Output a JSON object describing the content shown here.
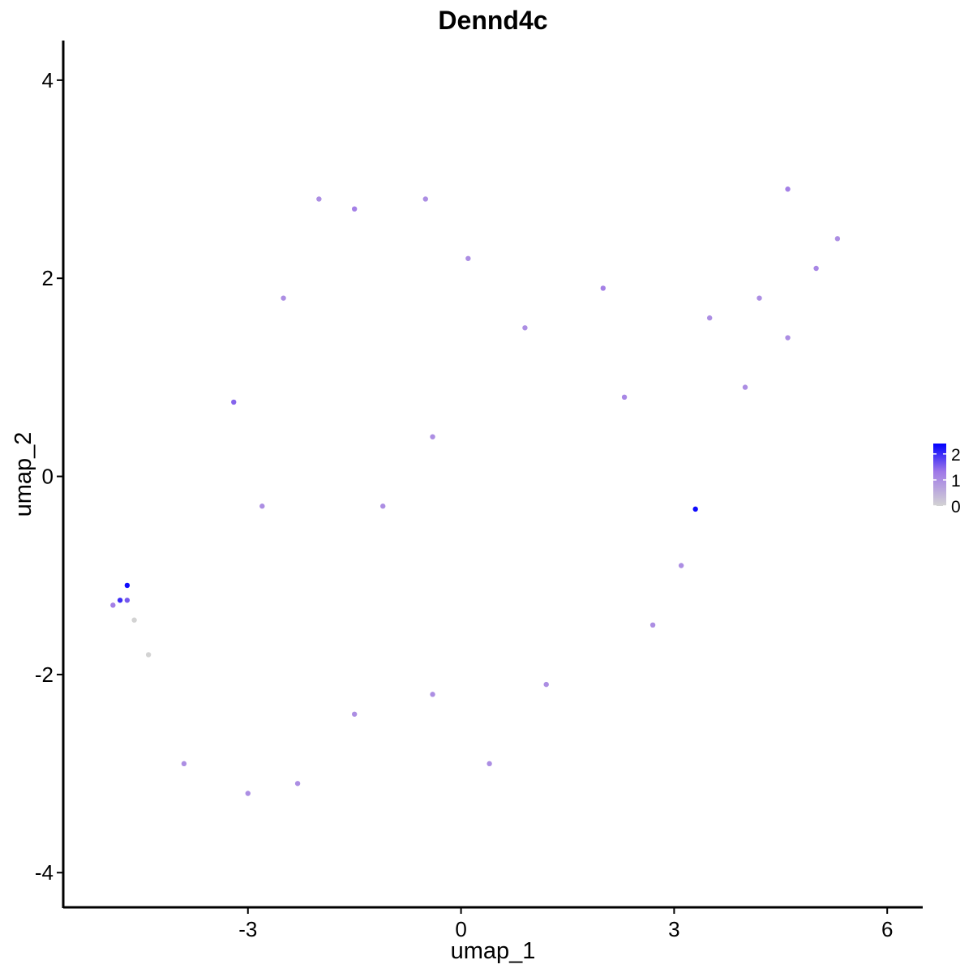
{
  "chart_data": {
    "type": "scatter",
    "title": "Dennd4c",
    "xlabel": "umap_1",
    "ylabel": "umap_2",
    "xlim": [
      -5.6,
      6.5
    ],
    "ylim": [
      -4.35,
      4.4
    ],
    "x_ticks": [
      -3,
      0,
      3,
      6
    ],
    "y_ticks": [
      -4,
      -2,
      0,
      2,
      4
    ],
    "x_tick_labels": [
      "-3",
      "0",
      "3",
      "6"
    ],
    "y_tick_labels": [
      "-4",
      "-2",
      "0",
      "2",
      "4"
    ],
    "grid": false,
    "legend": {
      "position": "right",
      "type": "colorbar",
      "range": [
        0,
        2.4
      ],
      "ticks": [
        0,
        1,
        2
      ],
      "tick_labels": [
        "0",
        "1",
        "2"
      ],
      "low_color": "#d3d3d3",
      "high_color": "#0000ff"
    },
    "points": [
      [
        -4.8,
        -1.25,
        2.0
      ],
      [
        -4.7,
        -1.1,
        2.3
      ],
      [
        -4.7,
        -1.25,
        1.6
      ],
      [
        -4.9,
        -1.3,
        1.2
      ],
      [
        -4.6,
        -1.45,
        0.0
      ],
      [
        -4.4,
        -1.8,
        0.0
      ],
      [
        3.3,
        -0.33,
        2.3
      ],
      [
        -3.2,
        0.75,
        1.5
      ],
      [
        -2.5,
        1.8,
        1.0
      ],
      [
        -2.0,
        2.8,
        1.0
      ],
      [
        -1.5,
        2.7,
        1.2
      ],
      [
        -0.5,
        2.8,
        1.0
      ],
      [
        0.1,
        2.2,
        1.0
      ],
      [
        0.9,
        1.5,
        1.0
      ],
      [
        2.0,
        1.9,
        1.2
      ],
      [
        2.3,
        0.8,
        1.1
      ],
      [
        3.5,
        1.6,
        1.0
      ],
      [
        4.2,
        1.8,
        1.0
      ],
      [
        4.6,
        2.9,
        1.2
      ],
      [
        5.0,
        2.1,
        1.1
      ],
      [
        5.3,
        2.4,
        1.0
      ],
      [
        4.6,
        1.4,
        1.0
      ],
      [
        4.0,
        0.9,
        1.0
      ],
      [
        3.1,
        -0.9,
        1.0
      ],
      [
        2.7,
        -1.5,
        1.0
      ],
      [
        1.2,
        -2.1,
        1.0
      ],
      [
        0.4,
        -2.9,
        1.0
      ],
      [
        -0.4,
        -2.2,
        1.0
      ],
      [
        -1.5,
        -2.4,
        1.0
      ],
      [
        -2.3,
        -3.1,
        1.0
      ],
      [
        -3.0,
        -3.2,
        1.0
      ],
      [
        -3.9,
        -2.9,
        1.0
      ],
      [
        -2.8,
        -0.3,
        1.0
      ],
      [
        -1.1,
        -0.3,
        1.0
      ],
      [
        -0.4,
        0.4,
        1.0
      ]
    ]
  }
}
